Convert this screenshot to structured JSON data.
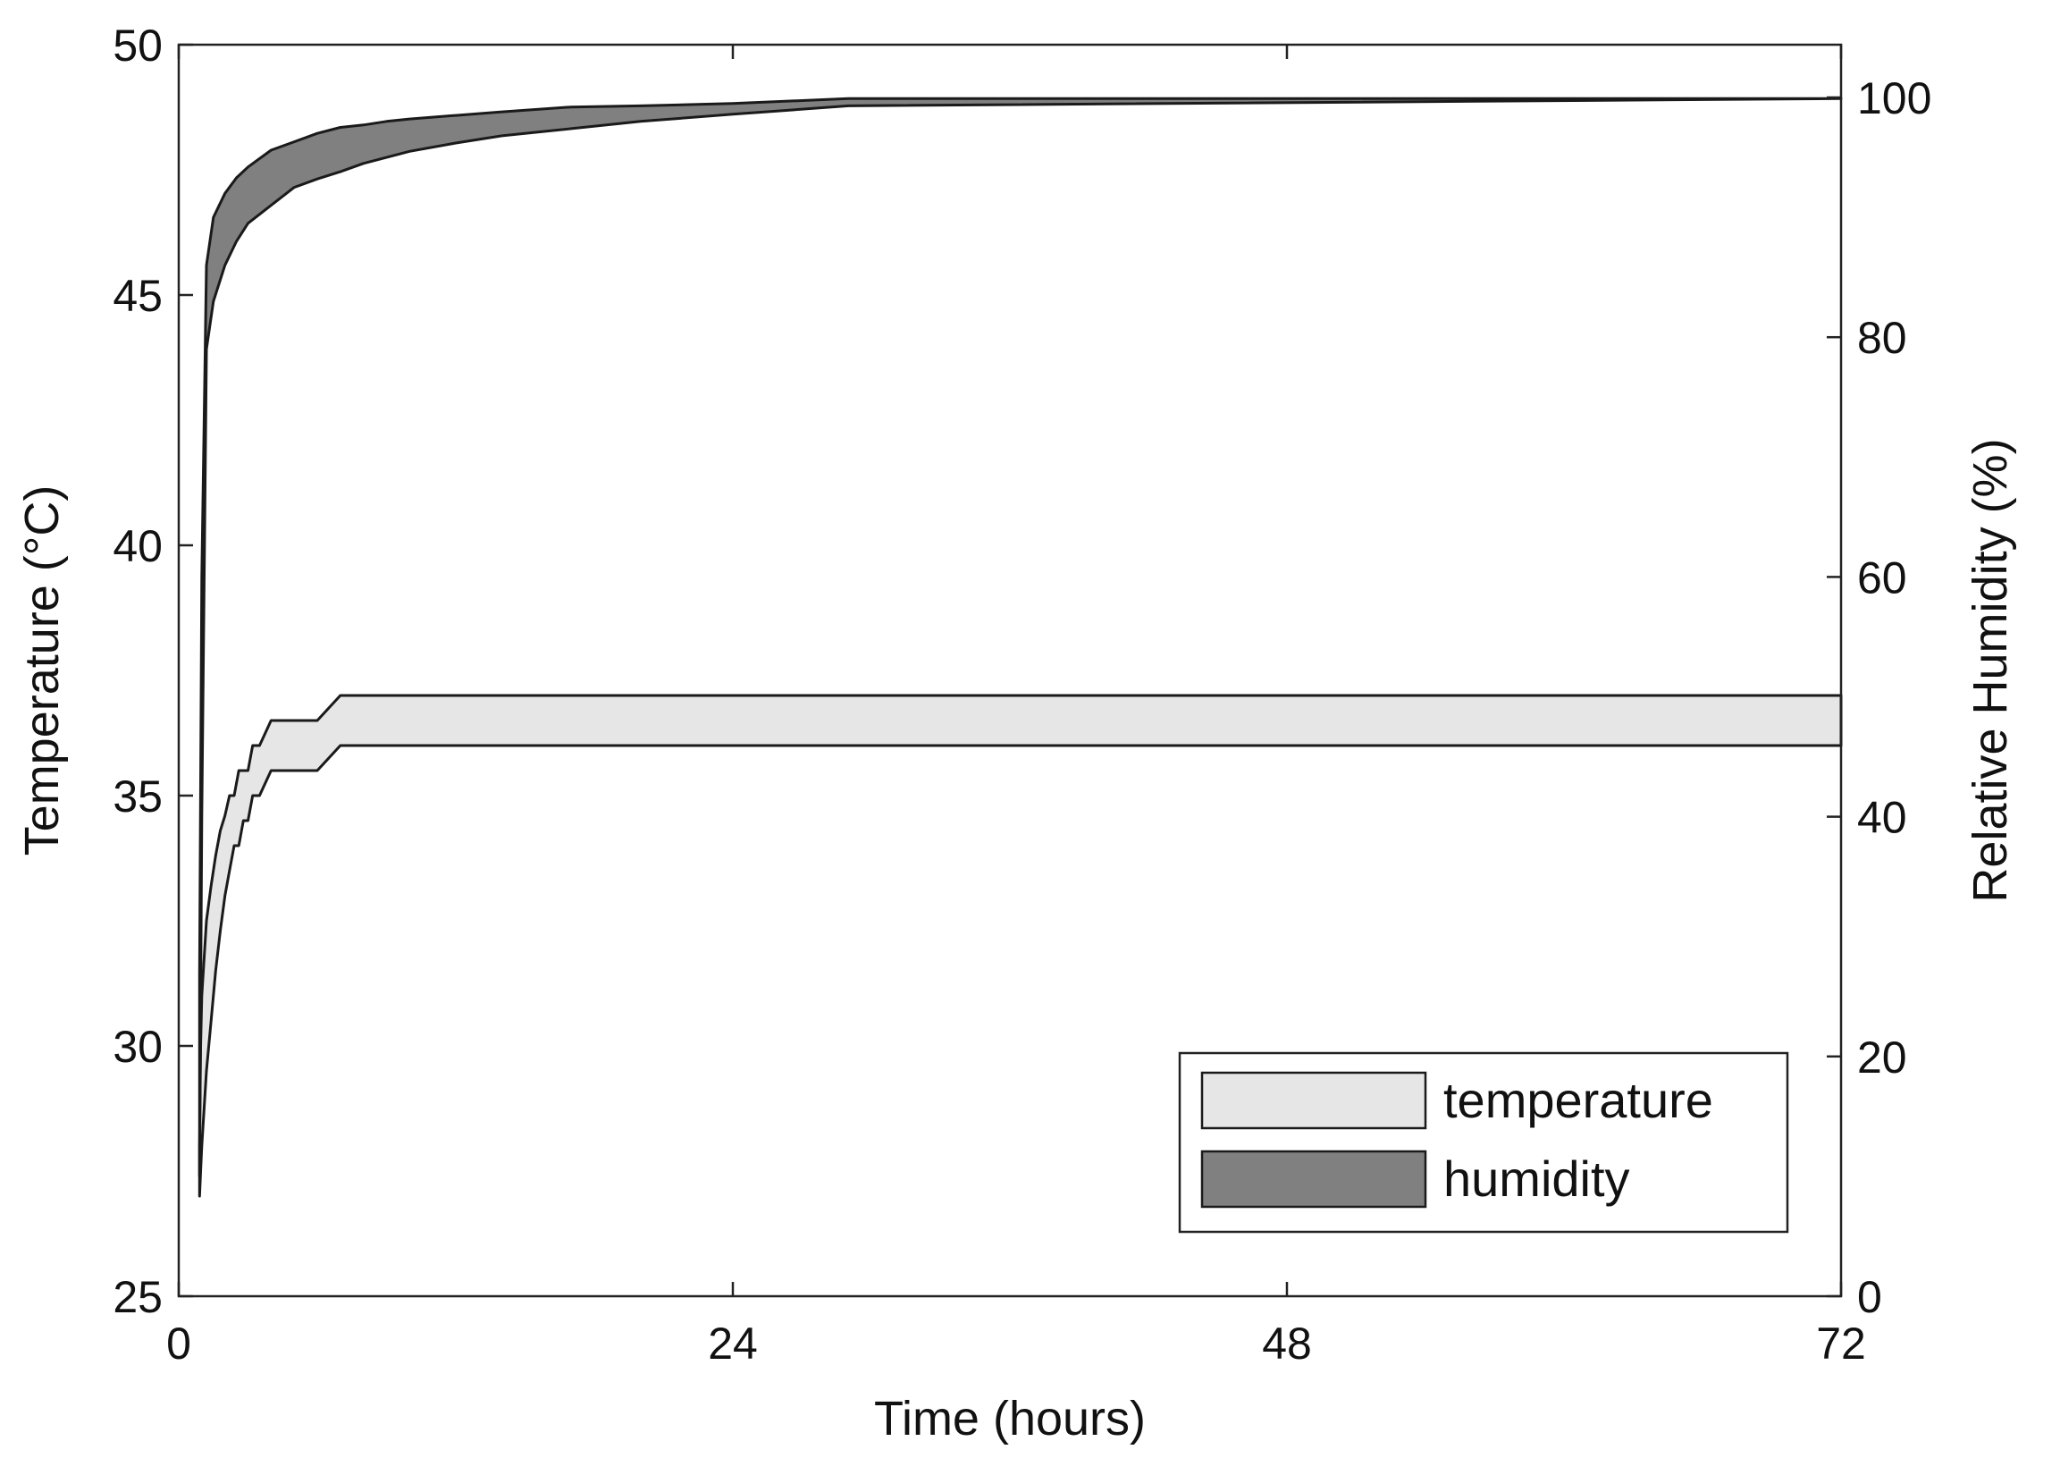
{
  "chart_data": {
    "type": "area",
    "xlabel": "Time (hours)",
    "ylabel_left": "Temperature (°C)",
    "ylabel_right": "Relative Humidity (%)",
    "xlim": [
      0,
      72
    ],
    "ylim_left": [
      25,
      50
    ],
    "ylim_right": [
      0,
      104.4
    ],
    "x_ticks": [
      0,
      24,
      48,
      72
    ],
    "y_left_ticks": [
      25,
      30,
      35,
      40,
      45,
      50
    ],
    "y_right_ticks": [
      0,
      20,
      40,
      60,
      80,
      100
    ],
    "grid": false,
    "legend_position": "bottom-right",
    "colors": {
      "temperature": "#e6e6e6",
      "humidity": "#808080",
      "edge": "#1a1a1a"
    },
    "series": [
      {
        "name": "temperature",
        "axis": "left",
        "x": [
          0.9,
          0.95,
          1.0,
          1.2,
          1.4,
          1.6,
          1.8,
          2.0,
          2.2,
          2.4,
          2.6,
          2.8,
          3.0,
          3.2,
          3.5,
          4.0,
          4.5,
          5.0,
          6.0,
          7.0,
          72
        ],
        "upper": [
          28.0,
          30.0,
          31.0,
          32.5,
          33.2,
          33.8,
          34.3,
          34.6,
          35.0,
          35.0,
          35.5,
          35.5,
          35.5,
          36.0,
          36.0,
          36.5,
          36.5,
          36.5,
          36.5,
          37.0,
          37.0
        ],
        "lower": [
          27.0,
          27.5,
          28.0,
          29.5,
          30.5,
          31.5,
          32.3,
          33.0,
          33.5,
          34.0,
          34.0,
          34.5,
          34.5,
          35.0,
          35.0,
          35.5,
          35.5,
          35.5,
          35.5,
          36.0,
          36.0
        ]
      },
      {
        "name": "humidity",
        "axis": "right",
        "x": [
          0.9,
          1.0,
          1.2,
          1.5,
          2.0,
          2.5,
          3.0,
          4.0,
          5.0,
          6.0,
          7.0,
          8.0,
          9.0,
          10.0,
          12.0,
          14.0,
          17.0,
          20.0,
          24.0,
          29.0,
          72
        ],
        "upper": [
          27.0,
          60.0,
          86.0,
          90.0,
          92.0,
          93.3,
          94.2,
          95.6,
          96.3,
          97.0,
          97.5,
          97.7,
          98.0,
          98.2,
          98.5,
          98.8,
          99.2,
          99.3,
          99.5,
          99.9,
          99.9
        ],
        "lower": [
          10.0,
          40.0,
          79.0,
          83.0,
          86.0,
          88.0,
          89.5,
          91.0,
          92.5,
          93.2,
          93.8,
          94.5,
          95.0,
          95.5,
          96.2,
          96.8,
          97.4,
          98.0,
          98.6,
          99.3,
          99.9
        ]
      }
    ]
  }
}
